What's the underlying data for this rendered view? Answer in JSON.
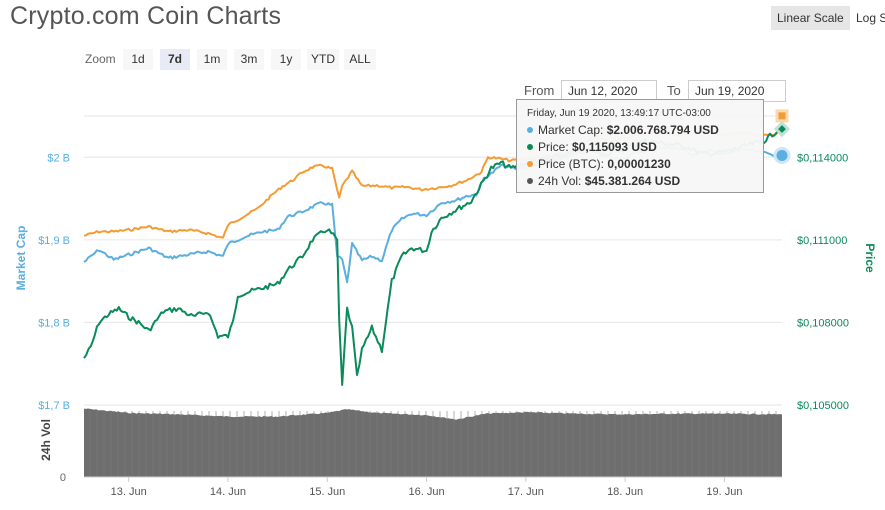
{
  "header": {
    "title": "Crypto.com Coin Charts"
  },
  "scale": {
    "linear_label": "Linear Scale",
    "log_label": "Log Scale"
  },
  "zoom": {
    "label": "Zoom",
    "buttons": [
      "1d",
      "7d",
      "1m",
      "3m",
      "1y",
      "YTD",
      "ALL"
    ],
    "active": "7d"
  },
  "range": {
    "from_label": "From",
    "from_value": "Jun 12, 2020",
    "to_label": "To",
    "to_value": "Jun 19, 2020"
  },
  "tooltip": {
    "date": "Friday, Jun 19 2020, 13:49:17 UTC-03:00",
    "rows": [
      {
        "label": "Market Cap:",
        "value": "$2.006.768.794 USD",
        "color": "#5aaee0"
      },
      {
        "label": "Price:",
        "value": "$0,115093 USD",
        "color": "#0b8a5a"
      },
      {
        "label": "Price (BTC):",
        "value": "0,00001230",
        "color": "#f59b33"
      },
      {
        "label": "24h Vol:",
        "value": "$45.381.264 USD",
        "color": "#555555"
      }
    ]
  },
  "colors": {
    "market_cap": "#5aaee0",
    "price": "#0b8a5a",
    "price_btc": "#f59b33",
    "volume": "#6e6e6e",
    "grid": "#e6e6e6"
  },
  "chart_data": {
    "type": "line",
    "x_ticks": [
      "13. Jun",
      "14. Jun",
      "15. Jun",
      "16. Jun",
      "17. Jun",
      "18. Jun",
      "19. Jun"
    ],
    "x_range": [
      12.55,
      19.58
    ],
    "left_axis": {
      "label": "Market Cap",
      "ticks": [
        "$1,7 B",
        "$1,8 B",
        "$1,9 B",
        "$2 B"
      ],
      "range": [
        1.7,
        2.05
      ]
    },
    "right_axis": {
      "label": "Price",
      "ticks": [
        "$0,105000",
        "$0,108000",
        "$0,111000",
        "$0,114000"
      ],
      "range": [
        0.105,
        0.1155
      ]
    },
    "volume_axis": {
      "label": "24h Vol",
      "ticks": [
        "0"
      ]
    },
    "series": [
      {
        "name": "Market Cap",
        "axis": "left",
        "points": [
          [
            12.55,
            1.873
          ],
          [
            12.7,
            1.888
          ],
          [
            12.85,
            1.876
          ],
          [
            13.0,
            1.882
          ],
          [
            13.2,
            1.89
          ],
          [
            13.4,
            1.878
          ],
          [
            13.6,
            1.882
          ],
          [
            13.8,
            1.886
          ],
          [
            13.95,
            1.88
          ],
          [
            14.0,
            1.895
          ],
          [
            14.15,
            1.903
          ],
          [
            14.35,
            1.91
          ],
          [
            14.5,
            1.912
          ],
          [
            14.6,
            1.928
          ],
          [
            14.75,
            1.934
          ],
          [
            14.85,
            1.94
          ],
          [
            14.95,
            1.945
          ],
          [
            15.05,
            1.942
          ],
          [
            15.1,
            1.88
          ],
          [
            15.15,
            1.876
          ],
          [
            15.2,
            1.848
          ],
          [
            15.25,
            1.895
          ],
          [
            15.35,
            1.875
          ],
          [
            15.45,
            1.88
          ],
          [
            15.55,
            1.875
          ],
          [
            15.65,
            1.912
          ],
          [
            15.75,
            1.925
          ],
          [
            15.85,
            1.932
          ],
          [
            16.0,
            1.93
          ],
          [
            16.15,
            1.945
          ],
          [
            16.3,
            1.948
          ],
          [
            16.4,
            1.953
          ],
          [
            16.5,
            1.955
          ],
          [
            16.58,
            1.975
          ],
          [
            16.65,
            1.98
          ],
          [
            16.75,
            1.99
          ],
          [
            16.9,
            1.986
          ],
          [
            17.0,
            1.988
          ],
          [
            17.2,
            1.994
          ],
          [
            17.35,
            1.998
          ],
          [
            17.5,
            2.004
          ],
          [
            17.65,
            2.008
          ],
          [
            17.8,
            2.004
          ],
          [
            17.95,
            1.996
          ],
          [
            18.1,
            2.006
          ],
          [
            18.3,
            2.01
          ],
          [
            18.5,
            2.012
          ],
          [
            18.7,
            2.003
          ],
          [
            18.85,
            2.008
          ],
          [
            19.0,
            2.004
          ],
          [
            19.2,
            2.01
          ],
          [
            19.35,
            2.006
          ],
          [
            19.5,
            2.003
          ],
          [
            19.58,
            2.007
          ]
        ]
      },
      {
        "name": "Price (BTC)",
        "axis": "left",
        "points": [
          [
            12.55,
            1.905
          ],
          [
            12.7,
            1.91
          ],
          [
            12.85,
            1.91
          ],
          [
            13.0,
            1.912
          ],
          [
            13.2,
            1.916
          ],
          [
            13.4,
            1.91
          ],
          [
            13.6,
            1.912
          ],
          [
            13.8,
            1.908
          ],
          [
            13.95,
            1.902
          ],
          [
            14.0,
            1.918
          ],
          [
            14.15,
            1.928
          ],
          [
            14.3,
            1.938
          ],
          [
            14.45,
            1.955
          ],
          [
            14.55,
            1.965
          ],
          [
            14.65,
            1.972
          ],
          [
            14.75,
            1.982
          ],
          [
            14.85,
            1.988
          ],
          [
            14.95,
            1.99
          ],
          [
            15.05,
            1.986
          ],
          [
            15.12,
            1.95
          ],
          [
            15.15,
            1.965
          ],
          [
            15.25,
            1.983
          ],
          [
            15.35,
            1.965
          ],
          [
            15.5,
            1.966
          ],
          [
            15.65,
            1.963
          ],
          [
            15.8,
            1.964
          ],
          [
            15.95,
            1.961
          ],
          [
            16.1,
            1.963
          ],
          [
            16.25,
            1.966
          ],
          [
            16.4,
            1.972
          ],
          [
            16.55,
            1.982
          ],
          [
            16.62,
            2.0
          ],
          [
            16.7,
            1.999
          ],
          [
            16.85,
            1.996
          ],
          [
            17.0,
            1.998
          ],
          [
            17.2,
            2.0
          ],
          [
            17.4,
            2.004
          ],
          [
            17.55,
            2.012
          ],
          [
            17.7,
            2.026
          ],
          [
            17.85,
            2.018
          ],
          [
            18.0,
            2.023
          ],
          [
            18.2,
            2.03
          ],
          [
            18.4,
            2.028
          ],
          [
            18.6,
            2.027
          ],
          [
            18.8,
            2.032
          ],
          [
            19.0,
            2.026
          ],
          [
            19.2,
            2.03
          ],
          [
            19.35,
            2.025
          ],
          [
            19.5,
            2.028
          ],
          [
            19.58,
            2.032
          ]
        ]
      },
      {
        "name": "Price",
        "axis": "right",
        "points": [
          [
            12.55,
            0.1067
          ],
          [
            12.62,
            0.1071
          ],
          [
            12.7,
            0.108
          ],
          [
            12.8,
            0.1083
          ],
          [
            12.9,
            0.1085
          ],
          [
            13.0,
            0.1082
          ],
          [
            13.1,
            0.108
          ],
          [
            13.2,
            0.1077
          ],
          [
            13.35,
            0.1084
          ],
          [
            13.5,
            0.1085
          ],
          [
            13.65,
            0.1082
          ],
          [
            13.8,
            0.1084
          ],
          [
            13.9,
            0.1075
          ],
          [
            14.0,
            0.1075
          ],
          [
            14.05,
            0.108
          ],
          [
            14.1,
            0.109
          ],
          [
            14.3,
            0.1092
          ],
          [
            14.5,
            0.1094
          ],
          [
            14.6,
            0.1099
          ],
          [
            14.75,
            0.1104
          ],
          [
            14.85,
            0.111
          ],
          [
            15.0,
            0.1114
          ],
          [
            15.1,
            0.111
          ],
          [
            15.12,
            0.108
          ],
          [
            15.15,
            0.1057
          ],
          [
            15.2,
            0.1085
          ],
          [
            15.25,
            0.1078
          ],
          [
            15.3,
            0.106
          ],
          [
            15.35,
            0.107
          ],
          [
            15.45,
            0.1078
          ],
          [
            15.55,
            0.107
          ],
          [
            15.65,
            0.1095
          ],
          [
            15.75,
            0.1104
          ],
          [
            15.85,
            0.1107
          ],
          [
            16.0,
            0.1106
          ],
          [
            16.05,
            0.1113
          ],
          [
            16.15,
            0.1118
          ],
          [
            16.25,
            0.112
          ],
          [
            16.35,
            0.1122
          ],
          [
            16.45,
            0.1124
          ],
          [
            16.55,
            0.113
          ],
          [
            16.65,
            0.1136
          ],
          [
            16.75,
            0.1138
          ],
          [
            16.85,
            0.1136
          ],
          [
            17.0,
            0.1138
          ],
          [
            17.2,
            0.1139
          ],
          [
            17.4,
            0.1141
          ],
          [
            17.6,
            0.1143
          ],
          [
            17.8,
            0.1141
          ],
          [
            18.0,
            0.1143
          ],
          [
            18.2,
            0.1146
          ],
          [
            18.4,
            0.1145
          ],
          [
            18.6,
            0.1144
          ],
          [
            18.8,
            0.1141
          ],
          [
            19.0,
            0.1142
          ],
          [
            19.2,
            0.1144
          ],
          [
            19.4,
            0.1146
          ],
          [
            19.58,
            0.1151
          ]
        ]
      },
      {
        "name": "24h Vol",
        "axis": "volume",
        "points": [
          [
            12.55,
            0.95
          ],
          [
            13.0,
            0.89
          ],
          [
            13.5,
            0.87
          ],
          [
            14.0,
            0.84
          ],
          [
            14.5,
            0.84
          ],
          [
            15.0,
            0.89
          ],
          [
            15.2,
            0.94
          ],
          [
            15.5,
            0.89
          ],
          [
            16.0,
            0.86
          ],
          [
            16.3,
            0.8
          ],
          [
            16.6,
            0.88
          ],
          [
            17.0,
            0.9
          ],
          [
            17.5,
            0.88
          ],
          [
            18.0,
            0.87
          ],
          [
            18.5,
            0.88
          ],
          [
            19.0,
            0.88
          ],
          [
            19.58,
            0.87
          ]
        ]
      }
    ]
  }
}
